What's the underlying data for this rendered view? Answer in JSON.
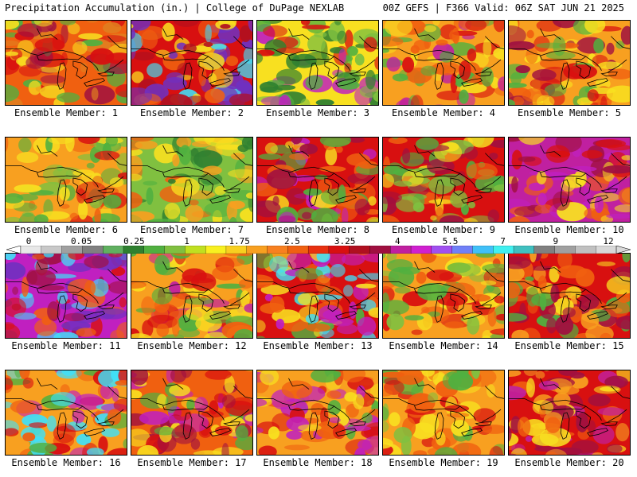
{
  "header": {
    "left": "Precipitation Accumulation (in.) | College of DuPage NEXLAB",
    "right": "00Z GEFS | F366 Valid: 06Z SAT JUN 21 2025"
  },
  "members": [
    {
      "label": "Ensemble Member: 1",
      "palette": [
        "#f06010",
        "#d81010",
        "#e08020",
        "#f8e020",
        "#50b040",
        "#a01040"
      ]
    },
    {
      "label": "Ensemble Member: 2",
      "palette": [
        "#d81010",
        "#b01020",
        "#f06010",
        "#f8e020",
        "#7030c0",
        "#40e0f8"
      ]
    },
    {
      "label": "Ensemble Member: 3",
      "palette": [
        "#f8e020",
        "#80c040",
        "#50b040",
        "#d81010",
        "#c020c0",
        "#2f8030"
      ]
    },
    {
      "label": "Ensemble Member: 4",
      "palette": [
        "#f8a020",
        "#f8e020",
        "#d81010",
        "#f06010",
        "#50b040",
        "#c020a0"
      ]
    },
    {
      "label": "Ensemble Member: 5",
      "palette": [
        "#f8a020",
        "#f06010",
        "#d81010",
        "#f8e020",
        "#50b040",
        "#a01040"
      ]
    },
    {
      "label": "Ensemble Member: 6",
      "palette": [
        "#f8a020",
        "#f8e020",
        "#50b040",
        "#d81010",
        "#f06010",
        "#80c040"
      ]
    },
    {
      "label": "Ensemble Member: 7",
      "palette": [
        "#80c040",
        "#f8e020",
        "#50b040",
        "#2f8030",
        "#f8a020",
        "#f06010"
      ]
    },
    {
      "label": "Ensemble Member: 8",
      "palette": [
        "#d81010",
        "#f06010",
        "#f8e020",
        "#a01040",
        "#50b040",
        "#c020c0"
      ]
    },
    {
      "label": "Ensemble Member: 9",
      "palette": [
        "#d81010",
        "#a01040",
        "#f8e020",
        "#50b040",
        "#f06010",
        "#80c040"
      ]
    },
    {
      "label": "Ensemble Member: 10",
      "palette": [
        "#c020a0",
        "#d81010",
        "#f06010",
        "#a01040",
        "#f8e020",
        "#c020c0"
      ]
    },
    {
      "label": "Ensemble Member: 11",
      "palette": [
        "#c020c0",
        "#d81010",
        "#f06010",
        "#a01040",
        "#40e0f8",
        "#7030c0"
      ]
    },
    {
      "label": "Ensemble Member: 12",
      "palette": [
        "#f8a020",
        "#f8e020",
        "#d81010",
        "#50b040",
        "#f06010",
        "#c020a0"
      ]
    },
    {
      "label": "Ensemble Member: 13",
      "palette": [
        "#d81010",
        "#c020c0",
        "#f06010",
        "#50b040",
        "#40e0f8",
        "#f8e020"
      ]
    },
    {
      "label": "Ensemble Member: 14",
      "palette": [
        "#f8a020",
        "#f06010",
        "#f8e020",
        "#d81010",
        "#50b040",
        "#80c040"
      ]
    },
    {
      "label": "Ensemble Member: 15",
      "palette": [
        "#d81010",
        "#f06010",
        "#f8a020",
        "#a01040",
        "#f8e020",
        "#50b040"
      ]
    },
    {
      "label": "Ensemble Member: 16",
      "palette": [
        "#f8a020",
        "#f06010",
        "#d81010",
        "#40e0f8",
        "#c020c0",
        "#50b040"
      ]
    },
    {
      "label": "Ensemble Member: 17",
      "palette": [
        "#f06010",
        "#d81010",
        "#f8e020",
        "#50b040",
        "#a01040",
        "#c020c0"
      ]
    },
    {
      "label": "Ensemble Member: 18",
      "palette": [
        "#f8a020",
        "#d81010",
        "#f06010",
        "#c020c0",
        "#f8e020",
        "#50b040"
      ]
    },
    {
      "label": "Ensemble Member: 19",
      "palette": [
        "#f8a020",
        "#f8e020",
        "#d81010",
        "#50b040",
        "#f06010",
        "#80c040"
      ]
    },
    {
      "label": "Ensemble Member: 20",
      "palette": [
        "#d81010",
        "#a01040",
        "#f06010",
        "#c020a0",
        "#f8e020",
        "#f8a020"
      ]
    }
  ],
  "colorbar": {
    "labels": [
      {
        "text": "0",
        "value": 0
      },
      {
        "text": "0.05",
        "value": 0.05
      },
      {
        "text": "0.25",
        "value": 0.25
      },
      {
        "text": "1",
        "value": 1
      },
      {
        "text": "1.75",
        "value": 1.75
      },
      {
        "text": "2.5",
        "value": 2.5
      },
      {
        "text": "3.25",
        "value": 3.25
      },
      {
        "text": "4",
        "value": 4
      },
      {
        "text": "5.5",
        "value": 5.5
      },
      {
        "text": "7",
        "value": 7
      },
      {
        "text": "9",
        "value": 9
      },
      {
        "text": "12",
        "value": 12
      }
    ],
    "colors": [
      "#e8e8e8",
      "#c8c8c8",
      "#a0a0a0",
      "#808080",
      "#60b060",
      "#2f8030",
      "#50b040",
      "#80c040",
      "#c0e020",
      "#f8f020",
      "#f8d020",
      "#f8a020",
      "#f88020",
      "#f06010",
      "#e83010",
      "#d81010",
      "#b01020",
      "#a01040",
      "#c020a0",
      "#d020d0",
      "#a050f0",
      "#7080f8",
      "#40c0f8",
      "#40f0f0",
      "#40c0c0",
      "#808080",
      "#a0a0a0",
      "#c0c0c0",
      "#d8d8d8"
    ]
  }
}
